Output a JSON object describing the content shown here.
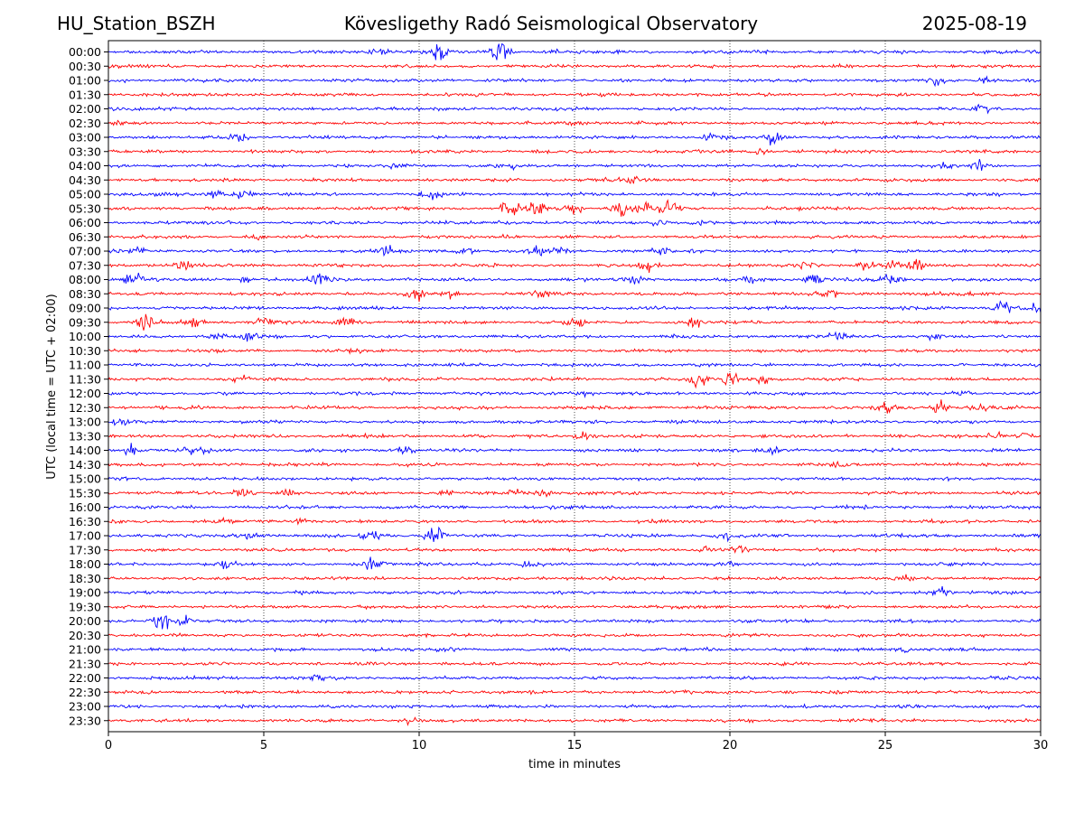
{
  "header": {
    "station": "HU_Station_BSZH",
    "title": "Kövesligethy Radó Seismological Observatory",
    "date": "2025-08-19"
  },
  "chart_data": {
    "type": "line",
    "subtype": "helicorder",
    "xlabel": "time in minutes",
    "ylabel": "UTC (local time = UTC + 02:00)",
    "xlim": [
      0,
      30
    ],
    "x_ticks": [
      0,
      5,
      10,
      15,
      20,
      25,
      30
    ],
    "grid": "vertical dotted lines at 5-minute ticks",
    "colors": [
      "#0000ff",
      "#ff0000"
    ],
    "rows": [
      {
        "label": "00:00",
        "events": [
          [
            8.7,
            0.7
          ],
          [
            10.6,
            1.2
          ],
          [
            12.6,
            1.8
          ],
          [
            14.3,
            0.3
          ]
        ]
      },
      {
        "label": "00:30",
        "events": []
      },
      {
        "label": "01:00",
        "events": [
          [
            26.6,
            0.4
          ],
          [
            28.2,
            0.4
          ]
        ]
      },
      {
        "label": "01:30",
        "events": []
      },
      {
        "label": "02:00",
        "events": [
          [
            28.1,
            0.6
          ]
        ]
      },
      {
        "label": "02:30",
        "events": [
          [
            15.0,
            0.3
          ],
          [
            0.3,
            0.3
          ]
        ]
      },
      {
        "label": "03:00",
        "events": [
          [
            4.2,
            0.7
          ],
          [
            19.5,
            0.6
          ],
          [
            21.4,
            1.2
          ]
        ]
      },
      {
        "label": "03:30",
        "events": [
          [
            21.0,
            0.3
          ]
        ]
      },
      {
        "label": "04:00",
        "events": [
          [
            9.4,
            0.3
          ],
          [
            12.9,
            0.3
          ],
          [
            27.0,
            0.4
          ],
          [
            28.0,
            0.6
          ]
        ]
      },
      {
        "label": "04:30",
        "events": [
          [
            17.0,
            0.5
          ],
          [
            16.0,
            0.3
          ]
        ]
      },
      {
        "label": "05:00",
        "events": [
          [
            4.3,
            0.7
          ],
          [
            10.4,
            0.9
          ],
          [
            3.5,
            0.5
          ]
        ]
      },
      {
        "label": "05:30",
        "events": [
          [
            12.9,
            1.5
          ],
          [
            13.8,
            1.2
          ],
          [
            15.0,
            1.0
          ],
          [
            16.5,
            1.1
          ],
          [
            17.3,
            1.1
          ],
          [
            18.0,
            1.2
          ]
        ]
      },
      {
        "label": "06:00",
        "events": [
          [
            17.8,
            0.4
          ],
          [
            19.0,
            0.4
          ]
        ]
      },
      {
        "label": "06:30",
        "events": [
          [
            4.7,
            0.4
          ],
          [
            13.0,
            0.4
          ]
        ]
      },
      {
        "label": "07:00",
        "events": [
          [
            0.8,
            0.6
          ],
          [
            9.0,
            0.8
          ],
          [
            13.8,
            1.0
          ],
          [
            14.5,
            0.7
          ],
          [
            17.8,
            0.7
          ],
          [
            11.5,
            0.5
          ]
        ]
      },
      {
        "label": "07:30",
        "events": [
          [
            2.4,
            0.8
          ],
          [
            17.4,
            0.7
          ],
          [
            22.5,
            0.8
          ],
          [
            24.3,
            0.9
          ],
          [
            25.3,
            0.8
          ],
          [
            26.0,
            1.1
          ]
        ]
      },
      {
        "label": "08:00",
        "events": [
          [
            0.8,
            0.9
          ],
          [
            4.5,
            0.8
          ],
          [
            6.8,
            1.0
          ],
          [
            17.0,
            0.6
          ],
          [
            20.7,
            0.8
          ],
          [
            22.7,
            1.1
          ],
          [
            25.2,
            0.8
          ]
        ]
      },
      {
        "label": "08:30",
        "events": [
          [
            9.9,
            1.2
          ],
          [
            11.0,
            0.8
          ],
          [
            23.1,
            0.7
          ],
          [
            14.0,
            0.5
          ]
        ]
      },
      {
        "label": "09:00",
        "events": [
          [
            28.8,
            1.1
          ],
          [
            29.7,
            0.7
          ]
        ]
      },
      {
        "label": "09:30",
        "events": [
          [
            1.2,
            1.4
          ],
          [
            2.8,
            0.9
          ],
          [
            5.0,
            0.8
          ],
          [
            7.6,
            0.8
          ],
          [
            15.0,
            0.8
          ],
          [
            18.8,
            0.6
          ]
        ]
      },
      {
        "label": "10:00",
        "events": [
          [
            3.4,
            0.7
          ],
          [
            4.5,
            0.6
          ],
          [
            23.5,
            0.5
          ],
          [
            26.5,
            0.5
          ]
        ]
      },
      {
        "label": "10:30",
        "events": [
          [
            8.1,
            0.3
          ]
        ]
      },
      {
        "label": "11:00",
        "events": []
      },
      {
        "label": "11:30",
        "events": [
          [
            4.3,
            0.5
          ],
          [
            19.0,
            1.4
          ],
          [
            20.0,
            1.0
          ],
          [
            21.0,
            0.7
          ]
        ]
      },
      {
        "label": "12:00",
        "events": [
          [
            15.3,
            0.3
          ],
          [
            27.5,
            0.3
          ]
        ]
      },
      {
        "label": "12:30",
        "events": [
          [
            25.0,
            0.9
          ],
          [
            26.8,
            0.9
          ],
          [
            28.0,
            0.6
          ]
        ]
      },
      {
        "label": "13:00",
        "events": [
          [
            0.4,
            0.6
          ]
        ]
      },
      {
        "label": "13:30",
        "events": [
          [
            15.3,
            0.5
          ],
          [
            28.5,
            0.6
          ],
          [
            29.5,
            0.6
          ]
        ]
      },
      {
        "label": "14:00",
        "events": [
          [
            0.8,
            0.9
          ],
          [
            2.7,
            0.9
          ],
          [
            9.6,
            0.7
          ],
          [
            21.4,
            0.6
          ]
        ]
      },
      {
        "label": "14:30",
        "events": [
          [
            23.5,
            0.5
          ]
        ]
      },
      {
        "label": "15:00",
        "events": []
      },
      {
        "label": "15:30",
        "events": [
          [
            4.3,
            0.7
          ],
          [
            5.8,
            0.7
          ],
          [
            10.8,
            0.5
          ],
          [
            13.0,
            0.5
          ],
          [
            14.0,
            0.5
          ]
        ]
      },
      {
        "label": "16:00",
        "events": []
      },
      {
        "label": "16:30",
        "events": [
          [
            3.6,
            0.4
          ],
          [
            6.2,
            0.4
          ]
        ]
      },
      {
        "label": "17:00",
        "events": [
          [
            8.4,
            0.9
          ],
          [
            10.5,
            1.2
          ],
          [
            4.6,
            0.5
          ],
          [
            20.0,
            0.5
          ]
        ]
      },
      {
        "label": "17:30",
        "events": [
          [
            19.3,
            0.5
          ],
          [
            20.4,
            0.5
          ]
        ]
      },
      {
        "label": "18:00",
        "events": [
          [
            3.8,
            0.6
          ],
          [
            8.5,
            0.8
          ],
          [
            13.5,
            0.4
          ],
          [
            20.0,
            0.4
          ]
        ]
      },
      {
        "label": "18:30",
        "events": [
          [
            25.7,
            0.6
          ]
        ]
      },
      {
        "label": "19:00",
        "events": [
          [
            26.8,
            0.7
          ]
        ]
      },
      {
        "label": "19:30",
        "events": []
      },
      {
        "label": "20:00",
        "events": [
          [
            1.7,
            1.6
          ],
          [
            2.5,
            0.7
          ]
        ]
      },
      {
        "label": "20:30",
        "events": []
      },
      {
        "label": "21:00",
        "events": [
          [
            10.9,
            0.4
          ],
          [
            25.6,
            0.4
          ]
        ]
      },
      {
        "label": "21:30",
        "events": []
      },
      {
        "label": "22:00",
        "events": [
          [
            6.9,
            0.4
          ]
        ]
      },
      {
        "label": "22:30",
        "events": []
      },
      {
        "label": "23:00",
        "events": [
          [
            28.3,
            0.3
          ]
        ]
      },
      {
        "label": "23:30",
        "events": [
          [
            9.7,
            0.4
          ]
        ]
      }
    ]
  }
}
